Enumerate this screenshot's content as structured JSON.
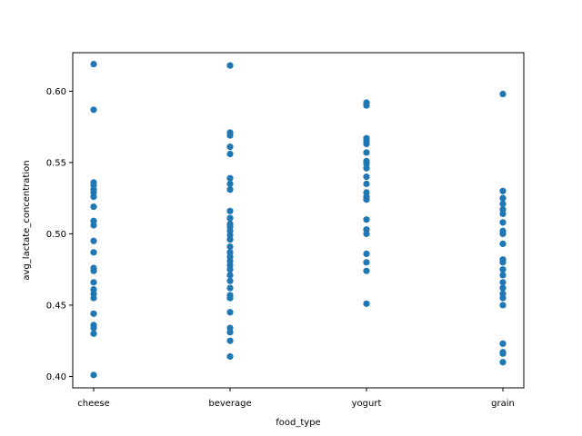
{
  "chart_data": {
    "type": "scatter",
    "xlabel": "food_type",
    "ylabel": "avg_lactate_concentration",
    "categories": [
      "cheese",
      "beverage",
      "yogurt",
      "grain"
    ],
    "ylim": [
      0.392,
      0.627
    ],
    "yticks": [
      0.4,
      0.45,
      0.5,
      0.55,
      0.6
    ],
    "ytick_labels": [
      "0.40",
      "0.45",
      "0.50",
      "0.55",
      "0.60"
    ],
    "grid": false,
    "point_color": "#1f77b4",
    "series": [
      {
        "category": "cheese",
        "values": [
          0.619,
          0.587,
          0.536,
          0.534,
          0.531,
          0.529,
          0.526,
          0.519,
          0.509,
          0.506,
          0.495,
          0.487,
          0.476,
          0.474,
          0.466,
          0.461,
          0.458,
          0.455,
          0.444,
          0.436,
          0.434,
          0.43,
          0.401
        ]
      },
      {
        "category": "beverage",
        "values": [
          0.618,
          0.571,
          0.569,
          0.561,
          0.556,
          0.539,
          0.535,
          0.531,
          0.516,
          0.511,
          0.507,
          0.505,
          0.502,
          0.499,
          0.496,
          0.491,
          0.487,
          0.484,
          0.481,
          0.478,
          0.475,
          0.471,
          0.467,
          0.462,
          0.457,
          0.455,
          0.445,
          0.434,
          0.431,
          0.425,
          0.414
        ]
      },
      {
        "category": "yogurt",
        "values": [
          0.592,
          0.59,
          0.567,
          0.565,
          0.563,
          0.557,
          0.551,
          0.549,
          0.546,
          0.54,
          0.535,
          0.529,
          0.526,
          0.524,
          0.51,
          0.503,
          0.5,
          0.486,
          0.48,
          0.474,
          0.451
        ]
      },
      {
        "category": "grain",
        "values": [
          0.598,
          0.53,
          0.525,
          0.521,
          0.517,
          0.514,
          0.508,
          0.502,
          0.5,
          0.493,
          0.482,
          0.48,
          0.475,
          0.471,
          0.466,
          0.462,
          0.458,
          0.455,
          0.45,
          0.423,
          0.417,
          0.416,
          0.41
        ]
      }
    ]
  }
}
